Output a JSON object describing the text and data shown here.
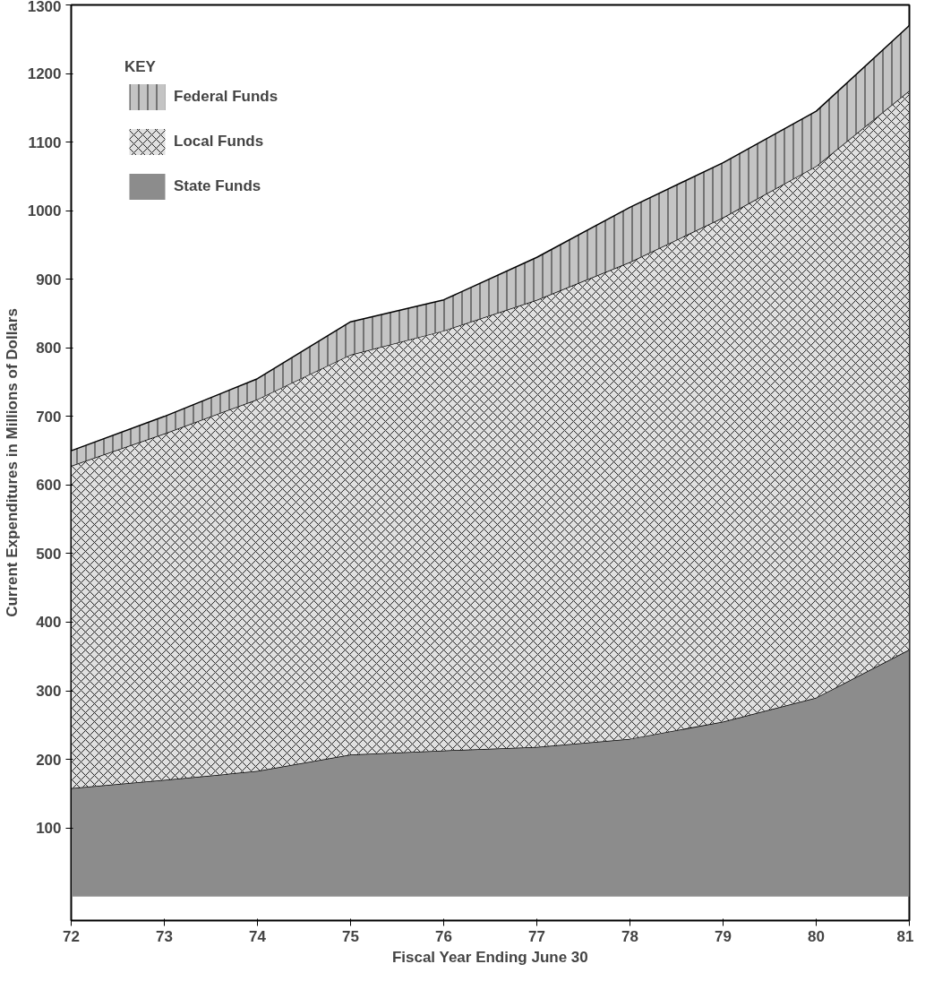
{
  "chart_data": {
    "type": "area",
    "stacked": true,
    "xlabel": "Fiscal Year Ending June 30",
    "ylabel": "Current Expenditures in Millions of Dollars",
    "legend_title": "KEY",
    "legend": "top left",
    "grid": false,
    "x": [
      72,
      73,
      74,
      75,
      76,
      77,
      78,
      79,
      80,
      81
    ],
    "xlim": [
      72,
      81
    ],
    "xticks": [
      72,
      73,
      74,
      75,
      76,
      77,
      78,
      79,
      80,
      81
    ],
    "ylim": [
      -35,
      1300
    ],
    "yticks": [
      100,
      200,
      300,
      400,
      500,
      600,
      700,
      800,
      900,
      1000,
      1100,
      1200,
      1300
    ],
    "series": [
      {
        "name": "State Funds",
        "color": "#8c8c8c",
        "values": [
          158,
          170,
          183,
          207,
          213,
          218,
          230,
          255,
          290,
          360
        ]
      },
      {
        "name": "Local Funds",
        "color": "#e0e0e0",
        "values": [
          470,
          505,
          542,
          583,
          612,
          652,
          695,
          735,
          775,
          815
        ]
      },
      {
        "name": "Federal Funds",
        "color": "#c4c4c4",
        "values": [
          22,
          25,
          30,
          48,
          45,
          62,
          80,
          80,
          80,
          95
        ]
      }
    ]
  }
}
